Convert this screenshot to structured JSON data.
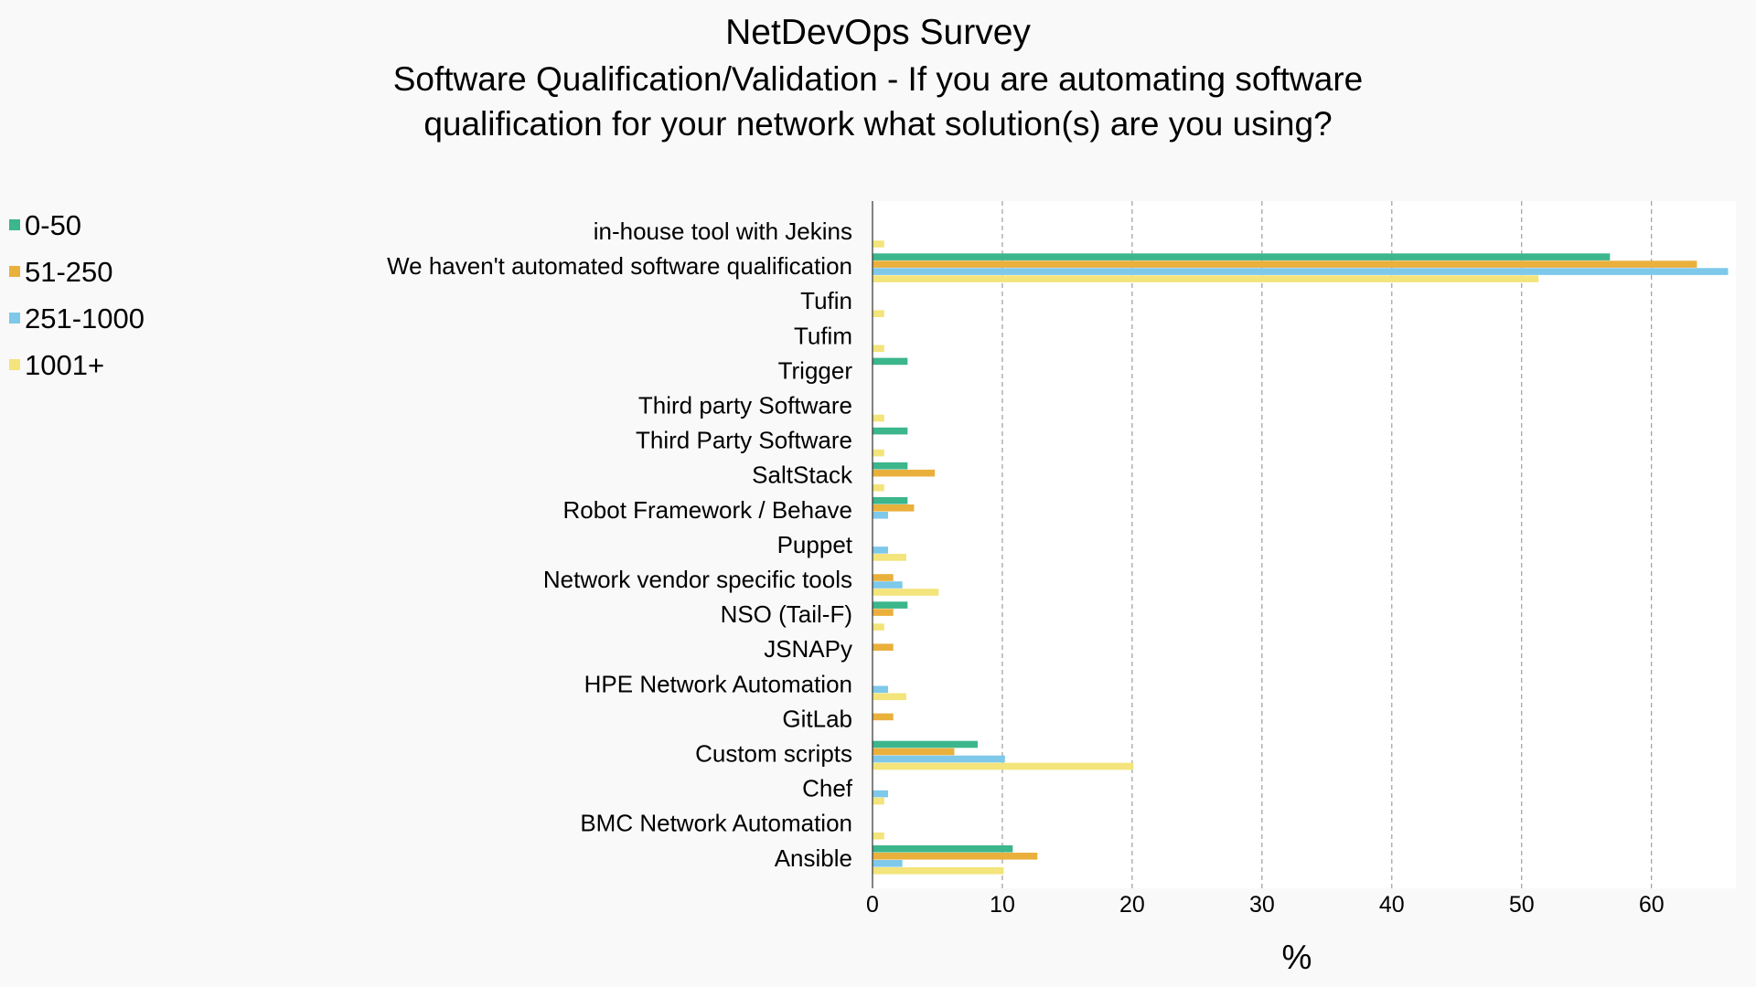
{
  "chart_data": {
    "type": "bar",
    "orientation": "horizontal",
    "title": "NetDevOps Survey",
    "subtitle_lines": [
      "Software Qualification/Validation - If you are automating software",
      "qualification for your network what solution(s) are you using?"
    ],
    "xlabel": "%",
    "ylabel": "",
    "xlim": [
      0,
      66.5
    ],
    "xticks": [
      0,
      10,
      20,
      30,
      40,
      50,
      60
    ],
    "grid": "vertical dashed",
    "legend_position": "left",
    "categories": [
      "in-house tool with Jekins",
      "We haven't automated software qualification",
      "Tufin",
      "Tufim",
      "Trigger",
      "Third party Software",
      "Third Party Software",
      "SaltStack",
      "Robot Framework / Behave",
      "Puppet",
      "Network vendor specific tools",
      "NSO (Tail-F)",
      "JSNAPy",
      "HPE Network Automation",
      "GitLab",
      "Custom scripts",
      "Chef",
      "BMC Network Automation",
      "Ansible"
    ],
    "series": [
      {
        "name": "0-50",
        "color": "#3cb68b",
        "values": [
          0,
          56.8,
          0,
          0,
          2.7,
          0,
          2.7,
          2.7,
          2.7,
          0,
          0,
          2.7,
          0,
          0,
          0,
          8.1,
          0,
          0,
          10.8
        ]
      },
      {
        "name": "51-250",
        "color": "#eab03c",
        "values": [
          0,
          63.5,
          0,
          0,
          0,
          0,
          0,
          4.8,
          3.2,
          0,
          1.6,
          1.6,
          1.6,
          0,
          1.6,
          6.3,
          0,
          0,
          12.7
        ]
      },
      {
        "name": "251-1000",
        "color": "#7ec8ea",
        "values": [
          0,
          65.9,
          0,
          0,
          0,
          0,
          0,
          0,
          1.2,
          1.2,
          2.3,
          0,
          0,
          1.2,
          0,
          10.2,
          1.2,
          0,
          2.3
        ]
      },
      {
        "name": "1001+",
        "color": "#f3e47b",
        "values": [
          0.9,
          51.3,
          0.9,
          0.9,
          0,
          0.9,
          0.9,
          0.9,
          0,
          2.6,
          5.1,
          0.9,
          0,
          2.6,
          0,
          20.1,
          0.9,
          0.9,
          10.1
        ]
      }
    ]
  }
}
